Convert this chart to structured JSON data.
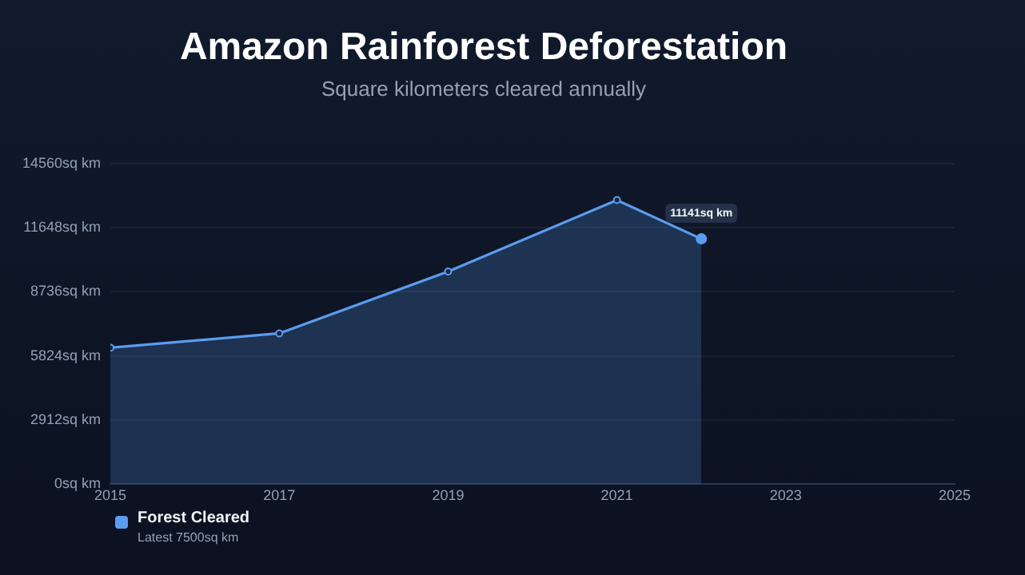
{
  "chart_data": {
    "type": "area",
    "title": "Amazon Rainforest Deforestation",
    "subtitle": "Square kilometers cleared annually",
    "x": [
      2015,
      2017,
      2019,
      2021,
      2022
    ],
    "series": [
      {
        "name": "Forest Cleared",
        "color": "#5b9cf0",
        "values": [
          6200,
          6850,
          9660,
          12900,
          11141
        ]
      }
    ],
    "xlim": [
      2015,
      2025
    ],
    "xticks": [
      2015,
      2017,
      2019,
      2021,
      2023,
      2025
    ],
    "ylim": [
      0,
      14560
    ],
    "yticks": [
      {
        "value": 0,
        "label": "0sq km"
      },
      {
        "value": 2912,
        "label": "2912sq km"
      },
      {
        "value": 5824,
        "label": "5824sq km"
      },
      {
        "value": 8736,
        "label": "8736sq km"
      },
      {
        "value": 11648,
        "label": "11648sq km"
      },
      {
        "value": 14560,
        "label": "14560sq km"
      }
    ],
    "grid": "y",
    "marker": "circle",
    "line_style": "solid",
    "legend": "bottom left",
    "annotations": [
      {
        "text": "11141sq km",
        "x": 2022,
        "y": 11141
      },
      "Latest 7500sq km"
    ]
  }
}
